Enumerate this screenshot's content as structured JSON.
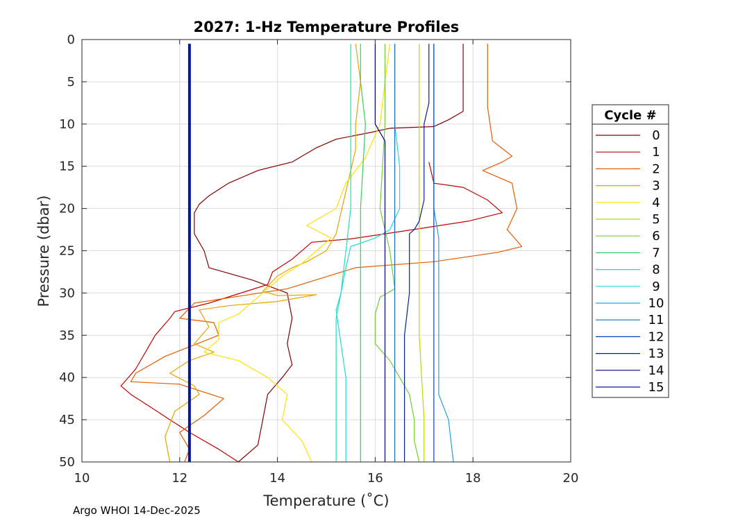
{
  "chart_data": {
    "type": "line",
    "title": "2027: 1-Hz Temperature Profiles",
    "xlabel": "Temperature (˚C)",
    "ylabel": "Pressure (dbar)",
    "xlim": [
      10,
      20
    ],
    "ylim": [
      0,
      50
    ],
    "y_reversed": true,
    "grid": true,
    "x_ticks": [
      10,
      12,
      14,
      16,
      18,
      20
    ],
    "y_ticks": [
      0,
      5,
      10,
      15,
      20,
      25,
      30,
      35,
      40,
      45,
      50
    ],
    "legend": {
      "title": "Cycle #",
      "placement": "right"
    },
    "footer": "Argo WHOI 14-Dec-2025",
    "series": [
      {
        "name": "0",
        "color": "#800000",
        "points": [
          [
            17.8,
            0.5
          ],
          [
            17.8,
            8.5
          ],
          [
            17.5,
            9.5
          ],
          [
            17.2,
            10.3
          ],
          [
            16.3,
            10.5
          ],
          [
            15.9,
            11.0
          ],
          [
            15.2,
            11.8
          ],
          [
            14.8,
            12.8
          ],
          [
            14.3,
            14.5
          ],
          [
            13.6,
            15.5
          ],
          [
            13.0,
            17.0
          ],
          [
            12.6,
            18.5
          ],
          [
            12.4,
            19.5
          ],
          [
            12.3,
            20.5
          ],
          [
            12.3,
            23.0
          ],
          [
            12.5,
            25.0
          ],
          [
            12.6,
            27.0
          ],
          [
            13.5,
            28.5
          ],
          [
            14.2,
            30.0
          ],
          [
            14.3,
            33.0
          ],
          [
            14.2,
            36.0
          ],
          [
            14.3,
            38.5
          ],
          [
            14.1,
            40.0
          ],
          [
            13.8,
            42.0
          ],
          [
            13.7,
            45.0
          ],
          [
            13.6,
            48.0
          ],
          [
            13.2,
            50.0
          ]
        ]
      },
      {
        "name": "1",
        "color": "#c00000",
        "points": [
          [
            17.1,
            14.5
          ],
          [
            17.2,
            17.0
          ],
          [
            17.8,
            17.5
          ],
          [
            18.3,
            19.0
          ],
          [
            18.6,
            20.5
          ],
          [
            17.9,
            21.5
          ],
          [
            17.0,
            22.3
          ],
          [
            16.2,
            23.0
          ],
          [
            15.5,
            23.6
          ],
          [
            14.7,
            24.0
          ],
          [
            14.3,
            26.0
          ],
          [
            13.9,
            27.5
          ],
          [
            13.8,
            29.0
          ],
          [
            12.6,
            31.2
          ],
          [
            11.9,
            32.2
          ],
          [
            11.8,
            33.0
          ],
          [
            11.5,
            35.0
          ],
          [
            11.3,
            37.0
          ],
          [
            11.1,
            39.0
          ],
          [
            10.8,
            41.0
          ],
          [
            11.0,
            42.0
          ],
          [
            11.4,
            43.5
          ],
          [
            11.8,
            45.0
          ],
          [
            12.2,
            46.5
          ],
          [
            12.8,
            48.5
          ],
          [
            13.2,
            50.0
          ]
        ]
      },
      {
        "name": "2",
        "color": "#e65a00",
        "points": [
          [
            18.3,
            0.5
          ],
          [
            18.3,
            8.0
          ],
          [
            18.4,
            12.0
          ],
          [
            18.8,
            13.8
          ],
          [
            18.6,
            14.5
          ],
          [
            18.2,
            15.5
          ],
          [
            18.8,
            17.0
          ],
          [
            18.9,
            20.0
          ],
          [
            18.7,
            22.5
          ],
          [
            19.0,
            24.5
          ],
          [
            18.5,
            25.2
          ],
          [
            17.2,
            26.3
          ],
          [
            15.6,
            27.0
          ],
          [
            14.2,
            29.5
          ],
          [
            12.3,
            31.2
          ],
          [
            12.0,
            33.0
          ],
          [
            12.7,
            33.5
          ],
          [
            12.8,
            35.0
          ],
          [
            11.7,
            37.5
          ],
          [
            11.1,
            39.5
          ],
          [
            11.0,
            40.5
          ],
          [
            12.0,
            40.8
          ],
          [
            12.9,
            42.5
          ],
          [
            12.5,
            44.5
          ],
          [
            12.0,
            46.5
          ],
          [
            12.2,
            48.5
          ],
          [
            12.1,
            50.0
          ]
        ]
      },
      {
        "name": "3",
        "color": "#e6a300",
        "points": [
          [
            15.6,
            0.5
          ],
          [
            15.7,
            5.0
          ],
          [
            15.6,
            10.0
          ],
          [
            15.6,
            13.0
          ],
          [
            15.2,
            23.0
          ],
          [
            15.0,
            25.0
          ],
          [
            14.6,
            26.3
          ],
          [
            14.3,
            27.0
          ],
          [
            14.0,
            28.0
          ],
          [
            13.7,
            29.8
          ],
          [
            14.0,
            30.3
          ],
          [
            14.8,
            30.2
          ],
          [
            14.0,
            31.0
          ],
          [
            13.0,
            31.5
          ],
          [
            12.4,
            32.0
          ],
          [
            12.6,
            34.0
          ],
          [
            12.3,
            36.0
          ],
          [
            12.7,
            37.0
          ],
          [
            12.2,
            38.0
          ],
          [
            11.8,
            39.5
          ],
          [
            12.3,
            41.0
          ],
          [
            12.4,
            42.0
          ],
          [
            11.9,
            44.0
          ],
          [
            11.7,
            47.0
          ],
          [
            11.8,
            50.0
          ]
        ]
      },
      {
        "name": "4",
        "color": "#ffe000",
        "points": [
          [
            16.3,
            0.5
          ],
          [
            16.2,
            5.0
          ],
          [
            16.1,
            10.0
          ],
          [
            15.8,
            14.0
          ],
          [
            15.4,
            17.0
          ],
          [
            15.2,
            20.0
          ],
          [
            14.6,
            22.0
          ],
          [
            15.1,
            23.5
          ],
          [
            14.8,
            25.0
          ],
          [
            14.5,
            26.5
          ],
          [
            14.1,
            28.0
          ],
          [
            13.8,
            29.5
          ],
          [
            13.5,
            31.0
          ],
          [
            13.2,
            32.5
          ],
          [
            12.8,
            33.5
          ],
          [
            12.8,
            35.5
          ],
          [
            12.5,
            37.0
          ],
          [
            13.2,
            38.0
          ],
          [
            13.8,
            40.0
          ],
          [
            14.2,
            42.0
          ],
          [
            14.1,
            45.0
          ],
          [
            14.5,
            47.5
          ],
          [
            14.7,
            50.0
          ]
        ]
      },
      {
        "name": "5",
        "color": "#b0e000",
        "points": [
          [
            16.9,
            0.5
          ],
          [
            16.9,
            20.0
          ],
          [
            16.9,
            35.0
          ],
          [
            17.0,
            45.0
          ],
          [
            17.0,
            50.0
          ]
        ]
      },
      {
        "name": "6",
        "color": "#70d030",
        "points": [
          [
            16.2,
            0.5
          ],
          [
            16.2,
            10.0
          ],
          [
            16.1,
            20.0
          ],
          [
            16.3,
            25.0
          ],
          [
            16.4,
            29.5
          ],
          [
            16.1,
            30.5
          ],
          [
            16.0,
            32.5
          ],
          [
            16.0,
            36.0
          ],
          [
            16.3,
            38.0
          ],
          [
            16.5,
            40.0
          ],
          [
            16.7,
            42.0
          ],
          [
            16.8,
            45.0
          ],
          [
            16.8,
            47.5
          ],
          [
            16.9,
            50.0
          ]
        ]
      },
      {
        "name": "7",
        "color": "#30d060",
        "points": [
          [
            15.7,
            0.5
          ],
          [
            15.7,
            5.0
          ],
          [
            15.8,
            10.0
          ],
          [
            15.7,
            20.0
          ],
          [
            15.7,
            30.0
          ],
          [
            15.7,
            40.0
          ],
          [
            15.7,
            50.0
          ]
        ]
      },
      {
        "name": "8",
        "color": "#20e0b0",
        "points": [
          [
            15.5,
            0.5
          ],
          [
            15.5,
            5.0
          ],
          [
            15.5,
            10.0
          ],
          [
            15.5,
            20.0
          ],
          [
            15.4,
            25.0
          ],
          [
            15.3,
            30.0
          ],
          [
            15.2,
            33.0
          ],
          [
            15.2,
            36.0
          ],
          [
            15.2,
            40.0
          ],
          [
            15.2,
            45.0
          ],
          [
            15.2,
            50.0
          ]
        ]
      },
      {
        "name": "9",
        "color": "#20d8e0",
        "points": [
          [
            16.4,
            0.5
          ],
          [
            16.4,
            5.0
          ],
          [
            16.4,
            10.0
          ],
          [
            16.5,
            15.0
          ],
          [
            16.5,
            20.0
          ],
          [
            16.3,
            22.5
          ],
          [
            16.0,
            23.5
          ],
          [
            15.5,
            24.5
          ],
          [
            15.4,
            27.0
          ],
          [
            15.3,
            30.0
          ],
          [
            15.2,
            32.0
          ],
          [
            15.3,
            36.0
          ],
          [
            15.4,
            40.0
          ],
          [
            15.4,
            45.0
          ],
          [
            15.4,
            50.0
          ]
        ]
      },
      {
        "name": "10",
        "color": "#20a0e0",
        "points": [
          [
            17.2,
            0.5
          ],
          [
            17.2,
            10.0
          ],
          [
            17.2,
            20.0
          ],
          [
            17.3,
            23.5
          ],
          [
            17.3,
            30.0
          ],
          [
            17.3,
            38.0
          ],
          [
            17.3,
            42.0
          ],
          [
            17.5,
            45.0
          ],
          [
            17.6,
            50.0
          ]
        ]
      },
      {
        "name": "11",
        "color": "#1070c0",
        "points": [
          [
            16.4,
            0.5
          ],
          [
            16.4,
            10.0
          ],
          [
            16.4,
            20.0
          ],
          [
            16.4,
            25.0
          ],
          [
            16.4,
            30.0
          ],
          [
            16.4,
            40.0
          ],
          [
            16.4,
            50.0
          ]
        ]
      },
      {
        "name": "12",
        "color": "#0040c0",
        "points": [
          [
            17.2,
            0.5
          ],
          [
            17.2,
            5.0
          ],
          [
            17.2,
            10.0
          ],
          [
            17.2,
            15.0
          ],
          [
            17.2,
            20.0
          ],
          [
            17.2,
            25.0
          ],
          [
            17.2,
            30.0
          ],
          [
            17.2,
            40.0
          ],
          [
            17.2,
            50.0
          ]
        ]
      },
      {
        "name": "13",
        "color": "#002090",
        "points": [
          [
            17.1,
            0.5
          ],
          [
            17.1,
            7.5
          ],
          [
            17.0,
            10.0
          ],
          [
            17.0,
            15.0
          ],
          [
            17.0,
            19.0
          ],
          [
            16.9,
            21.5
          ],
          [
            16.8,
            22.5
          ],
          [
            16.7,
            23.0
          ],
          [
            16.7,
            30.0
          ],
          [
            16.6,
            35.0
          ],
          [
            16.6,
            40.0
          ],
          [
            16.6,
            45.0
          ],
          [
            16.6,
            50.0
          ]
        ]
      },
      {
        "name": "14",
        "color": "#000080",
        "points": [
          [
            16.0,
            0.5
          ],
          [
            16.0,
            10.0
          ],
          [
            16.2,
            12.0
          ],
          [
            16.2,
            20.0
          ],
          [
            16.2,
            30.0
          ],
          [
            16.2,
            40.0
          ],
          [
            16.2,
            50.0
          ]
        ]
      },
      {
        "name": "15",
        "color": "#0018a0",
        "thick": true,
        "points": [
          [
            12.2,
            0.5
          ],
          [
            12.2,
            10.0
          ],
          [
            12.2,
            20.0
          ],
          [
            12.2,
            30.0
          ],
          [
            12.2,
            40.0
          ],
          [
            12.2,
            50.0
          ]
        ]
      }
    ]
  }
}
